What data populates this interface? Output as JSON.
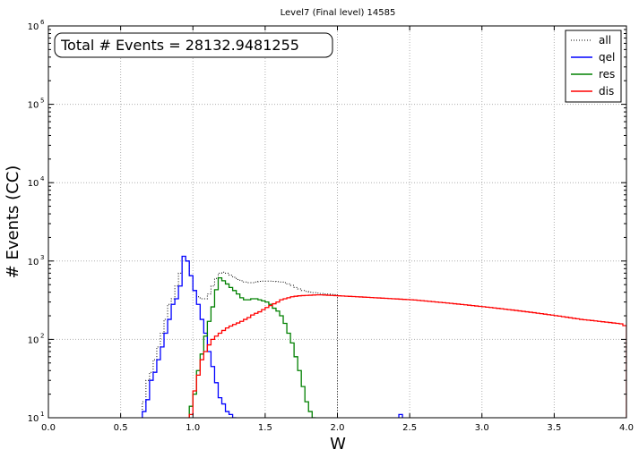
{
  "chart_data": {
    "type": "line",
    "title": "Level7 (Final level) 14585",
    "annotation": "Total # Events = 28132.9481255",
    "xlabel": "W",
    "ylabel": "# Events (CC)",
    "xlim": [
      0.0,
      4.0
    ],
    "ylim": [
      10,
      1000000
    ],
    "yscale": "log",
    "grid": true,
    "legend_position": "top-right",
    "x_ticks": [
      "0.0",
      "0.5",
      "1.0",
      "1.5",
      "2.0",
      "2.5",
      "3.0",
      "3.5",
      "4.0"
    ],
    "y_ticks": [
      {
        "base": "10",
        "exp": "1"
      },
      {
        "base": "10",
        "exp": "2"
      },
      {
        "base": "10",
        "exp": "3"
      },
      {
        "base": "10",
        "exp": "4"
      },
      {
        "base": "10",
        "exp": "5"
      },
      {
        "base": "10",
        "exp": "6"
      }
    ],
    "bin_width": 0.025,
    "series": [
      {
        "name": "all",
        "color": "#000000",
        "style": "dotted",
        "bins": [
          [
            0.65,
            16
          ],
          [
            0.675,
            30
          ],
          [
            0.7,
            38
          ],
          [
            0.725,
            55
          ],
          [
            0.75,
            80
          ],
          [
            0.775,
            120
          ],
          [
            0.8,
            180
          ],
          [
            0.825,
            280
          ],
          [
            0.85,
            330
          ],
          [
            0.875,
            480
          ],
          [
            0.9,
            700
          ],
          [
            0.925,
            1150
          ],
          [
            0.95,
            1000
          ],
          [
            0.975,
            650
          ],
          [
            1.0,
            420
          ],
          [
            1.025,
            350
          ],
          [
            1.05,
            330
          ],
          [
            1.075,
            330
          ],
          [
            1.1,
            380
          ],
          [
            1.125,
            480
          ],
          [
            1.15,
            600
          ],
          [
            1.175,
            700
          ],
          [
            1.2,
            720
          ],
          [
            1.225,
            700
          ],
          [
            1.25,
            660
          ],
          [
            1.275,
            620
          ],
          [
            1.3,
            580
          ],
          [
            1.325,
            560
          ],
          [
            1.35,
            540
          ],
          [
            1.375,
            530
          ],
          [
            1.4,
            530
          ],
          [
            1.425,
            540
          ],
          [
            1.45,
            550
          ],
          [
            1.475,
            555
          ],
          [
            1.5,
            555
          ],
          [
            1.525,
            555
          ],
          [
            1.55,
            550
          ],
          [
            1.575,
            545
          ],
          [
            1.6,
            540
          ],
          [
            1.625,
            530
          ],
          [
            1.65,
            510
          ],
          [
            1.675,
            490
          ],
          [
            1.7,
            460
          ],
          [
            1.725,
            440
          ],
          [
            1.75,
            420
          ],
          [
            1.775,
            410
          ],
          [
            1.8,
            400
          ],
          [
            1.825,
            395
          ],
          [
            1.85,
            390
          ],
          [
            1.875,
            385
          ],
          [
            1.9,
            380
          ],
          [
            1.925,
            378
          ],
          [
            1.95,
            375
          ],
          [
            1.975,
            372
          ]
        ]
      },
      {
        "name": "qel",
        "color": "#0000ff",
        "style": "solid",
        "bins": [
          [
            0.65,
            12
          ],
          [
            0.675,
            17
          ],
          [
            0.7,
            30
          ],
          [
            0.725,
            38
          ],
          [
            0.75,
            55
          ],
          [
            0.775,
            80
          ],
          [
            0.8,
            120
          ],
          [
            0.825,
            180
          ],
          [
            0.85,
            280
          ],
          [
            0.875,
            330
          ],
          [
            0.9,
            480
          ],
          [
            0.925,
            1150
          ],
          [
            0.95,
            1000
          ],
          [
            0.975,
            650
          ],
          [
            1.0,
            420
          ],
          [
            1.025,
            280
          ],
          [
            1.05,
            180
          ],
          [
            1.075,
            120
          ],
          [
            1.1,
            70
          ],
          [
            1.125,
            45
          ],
          [
            1.15,
            28
          ],
          [
            1.175,
            18
          ],
          [
            1.2,
            15
          ],
          [
            1.225,
            12
          ],
          [
            1.25,
            11
          ],
          [
            1.275,
            10
          ],
          [
            2.425,
            11
          ]
        ]
      },
      {
        "name": "res",
        "color": "#008000",
        "style": "solid",
        "bins": [
          [
            0.975,
            14
          ],
          [
            1.0,
            20
          ],
          [
            1.025,
            40
          ],
          [
            1.05,
            65
          ],
          [
            1.075,
            110
          ],
          [
            1.1,
            170
          ],
          [
            1.125,
            260
          ],
          [
            1.15,
            430
          ],
          [
            1.175,
            610
          ],
          [
            1.2,
            560
          ],
          [
            1.225,
            510
          ],
          [
            1.25,
            460
          ],
          [
            1.275,
            420
          ],
          [
            1.3,
            380
          ],
          [
            1.325,
            340
          ],
          [
            1.35,
            320
          ],
          [
            1.375,
            320
          ],
          [
            1.4,
            330
          ],
          [
            1.425,
            330
          ],
          [
            1.45,
            320
          ],
          [
            1.475,
            310
          ],
          [
            1.5,
            300
          ],
          [
            1.525,
            280
          ],
          [
            1.55,
            250
          ],
          [
            1.575,
            230
          ],
          [
            1.6,
            200
          ],
          [
            1.625,
            160
          ],
          [
            1.65,
            120
          ],
          [
            1.675,
            90
          ],
          [
            1.7,
            60
          ],
          [
            1.725,
            40
          ],
          [
            1.75,
            25
          ],
          [
            1.775,
            16
          ],
          [
            1.8,
            12
          ],
          [
            1.825,
            10
          ]
        ]
      },
      {
        "name": "dis",
        "color": "#ff0000",
        "style": "solid",
        "bins": [
          [
            0.975,
            11
          ],
          [
            1.0,
            22
          ],
          [
            1.025,
            35
          ],
          [
            1.05,
            55
          ],
          [
            1.075,
            70
          ],
          [
            1.1,
            85
          ],
          [
            1.125,
            100
          ],
          [
            1.15,
            110
          ],
          [
            1.175,
            120
          ],
          [
            1.2,
            130
          ],
          [
            1.225,
            140
          ],
          [
            1.25,
            148
          ],
          [
            1.275,
            155
          ],
          [
            1.3,
            162
          ],
          [
            1.325,
            170
          ],
          [
            1.35,
            180
          ],
          [
            1.375,
            190
          ],
          [
            1.4,
            205
          ],
          [
            1.425,
            215
          ],
          [
            1.45,
            225
          ],
          [
            1.475,
            240
          ],
          [
            1.5,
            255
          ],
          [
            1.525,
            270
          ],
          [
            1.55,
            285
          ],
          [
            1.575,
            300
          ],
          [
            1.6,
            320
          ],
          [
            1.625,
            330
          ],
          [
            1.65,
            340
          ],
          [
            1.675,
            350
          ],
          [
            1.7,
            355
          ],
          [
            1.725,
            360
          ],
          [
            1.75,
            362
          ],
          [
            1.775,
            364
          ],
          [
            1.8,
            366
          ],
          [
            1.825,
            368
          ],
          [
            1.85,
            370
          ],
          [
            1.875,
            370
          ],
          [
            1.9,
            368
          ],
          [
            1.925,
            366
          ],
          [
            1.95,
            364
          ],
          [
            1.975,
            362
          ],
          [
            2.0,
            360
          ],
          [
            2.025,
            358
          ],
          [
            2.05,
            356
          ],
          [
            2.075,
            354
          ],
          [
            2.1,
            352
          ],
          [
            2.125,
            350
          ],
          [
            2.15,
            348
          ],
          [
            2.175,
            346
          ],
          [
            2.2,
            344
          ],
          [
            2.225,
            342
          ],
          [
            2.25,
            340
          ],
          [
            2.275,
            338
          ],
          [
            2.3,
            336
          ],
          [
            2.325,
            334
          ],
          [
            2.35,
            332
          ],
          [
            2.375,
            330
          ],
          [
            2.4,
            328
          ],
          [
            2.425,
            326
          ],
          [
            2.45,
            324
          ],
          [
            2.475,
            322
          ],
          [
            2.5,
            320
          ],
          [
            2.525,
            318
          ],
          [
            2.55,
            315
          ],
          [
            2.575,
            312
          ],
          [
            2.6,
            309
          ],
          [
            2.625,
            306
          ],
          [
            2.65,
            303
          ],
          [
            2.675,
            300
          ],
          [
            2.7,
            297
          ],
          [
            2.725,
            294
          ],
          [
            2.75,
            291
          ],
          [
            2.775,
            288
          ],
          [
            2.8,
            285
          ],
          [
            2.825,
            282
          ],
          [
            2.85,
            279
          ],
          [
            2.875,
            276
          ],
          [
            2.9,
            273
          ],
          [
            2.925,
            270
          ],
          [
            2.95,
            267
          ],
          [
            2.975,
            264
          ],
          [
            3.0,
            261
          ],
          [
            3.025,
            258
          ],
          [
            3.05,
            255
          ],
          [
            3.075,
            252
          ],
          [
            3.1,
            249
          ],
          [
            3.125,
            246
          ],
          [
            3.15,
            243
          ],
          [
            3.175,
            240
          ],
          [
            3.2,
            237
          ],
          [
            3.225,
            234
          ],
          [
            3.25,
            231
          ],
          [
            3.275,
            228
          ],
          [
            3.3,
            225
          ],
          [
            3.325,
            222
          ],
          [
            3.35,
            219
          ],
          [
            3.375,
            216
          ],
          [
            3.4,
            213
          ],
          [
            3.425,
            210
          ],
          [
            3.45,
            207
          ],
          [
            3.475,
            204
          ],
          [
            3.5,
            201
          ],
          [
            3.525,
            198
          ],
          [
            3.55,
            195
          ],
          [
            3.575,
            192
          ],
          [
            3.6,
            189
          ],
          [
            3.625,
            186
          ],
          [
            3.65,
            183
          ],
          [
            3.675,
            180
          ],
          [
            3.7,
            178
          ],
          [
            3.725,
            176
          ],
          [
            3.75,
            174
          ],
          [
            3.775,
            172
          ],
          [
            3.8,
            170
          ],
          [
            3.825,
            168
          ],
          [
            3.85,
            166
          ],
          [
            3.875,
            164
          ],
          [
            3.9,
            162
          ],
          [
            3.925,
            160
          ],
          [
            3.95,
            158
          ],
          [
            3.975,
            150
          ]
        ]
      }
    ]
  }
}
